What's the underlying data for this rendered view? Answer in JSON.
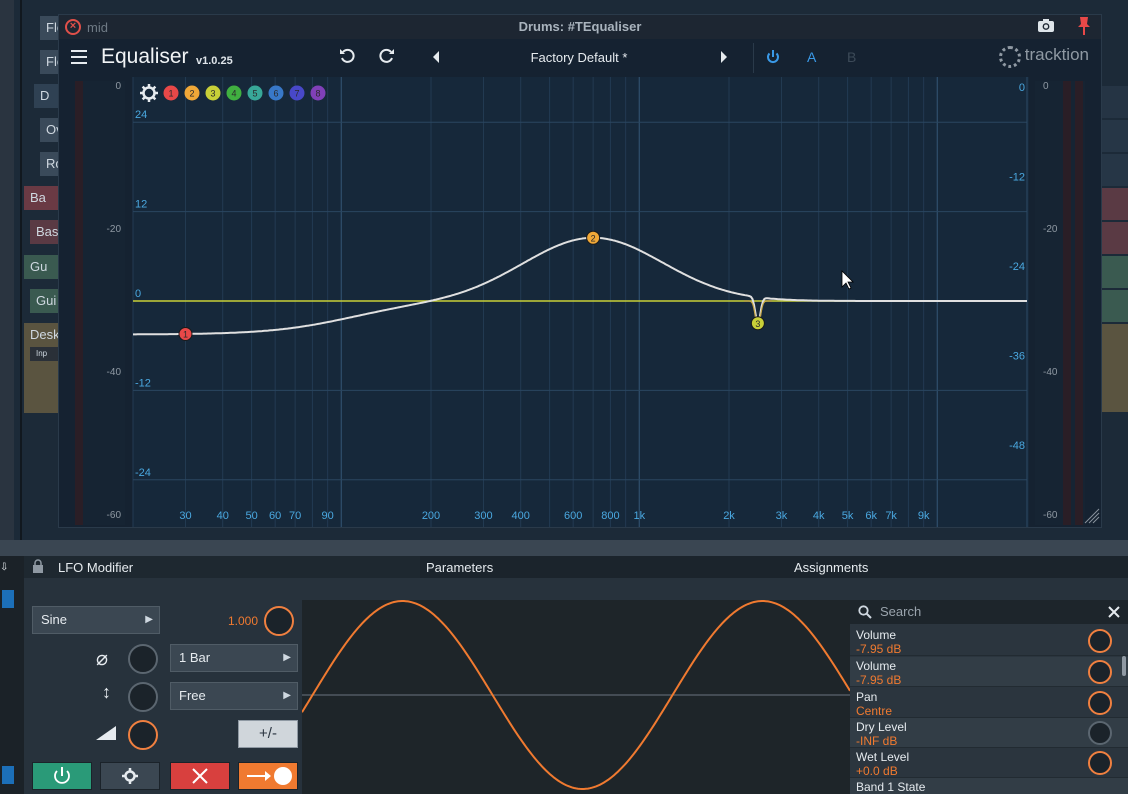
{
  "background": {
    "tracks": [
      "Flo",
      "Flo",
      "D",
      "Ov",
      "Ro",
      "Ba",
      "Bas",
      "Gu",
      "Gui",
      "Desk"
    ],
    "mid_label": "mid",
    "inp_label": "Inp"
  },
  "window": {
    "title": "Drums: #TEqualiser",
    "plugin_name": "Equaliser",
    "version": "v1.0.25",
    "preset": "Factory Default *",
    "btn_a": "A",
    "btn_b": "B",
    "brand": "tracktion"
  },
  "eq": {
    "bands": [
      "1",
      "2",
      "3",
      "4",
      "5",
      "6",
      "7",
      "8"
    ],
    "band_colors": [
      "#e84848",
      "#f0a838",
      "#c8d038",
      "#40b040",
      "#38a898",
      "#3878c8",
      "#4848c8",
      "#8040b8"
    ],
    "gain_labels_left": [
      "24",
      "12",
      "0",
      "-12",
      "-24"
    ],
    "meter_labels_left": [
      "0",
      "-20",
      "-40",
      "-60"
    ],
    "meter_labels_right": [
      "0",
      "-20",
      "-40",
      "-60"
    ],
    "db_labels_right": [
      "0",
      "-12",
      "-24",
      "-36",
      "-48"
    ],
    "freq_labels": [
      "30",
      "40",
      "50",
      "60",
      "70",
      "90",
      "200",
      "300",
      "400",
      "600",
      "800",
      "1k",
      "2k",
      "3k",
      "4k",
      "5k",
      "6k",
      "7k",
      "9k"
    ],
    "nodes": [
      {
        "label": "1",
        "freq": 30,
        "gain": -4.5,
        "color": "#e84848"
      },
      {
        "label": "2",
        "freq": 700,
        "gain": 8.5,
        "color": "#f0a838"
      },
      {
        "label": "3",
        "freq": 2500,
        "gain": -3.5,
        "color": "#c8d038"
      }
    ]
  },
  "lfo": {
    "title": "LFO Modifier",
    "tab_parameters": "Parameters",
    "tab_assignments": "Assignments",
    "wave_type": "Sine",
    "depth_value": "1.000",
    "rate": "1 Bar",
    "sync": "Free",
    "polarity_label": "+/-",
    "search_placeholder": "Search",
    "params": [
      {
        "name": "Volume",
        "value": "-7.95 dB"
      },
      {
        "name": "Volume",
        "value": "-7.95 dB"
      },
      {
        "name": "Pan",
        "value": "Centre"
      },
      {
        "name": "Dry Level",
        "value": "-INF dB"
      },
      {
        "name": "Wet Level",
        "value": "+0.0 dB"
      },
      {
        "name": "Band 1 State",
        "value": ""
      }
    ]
  }
}
